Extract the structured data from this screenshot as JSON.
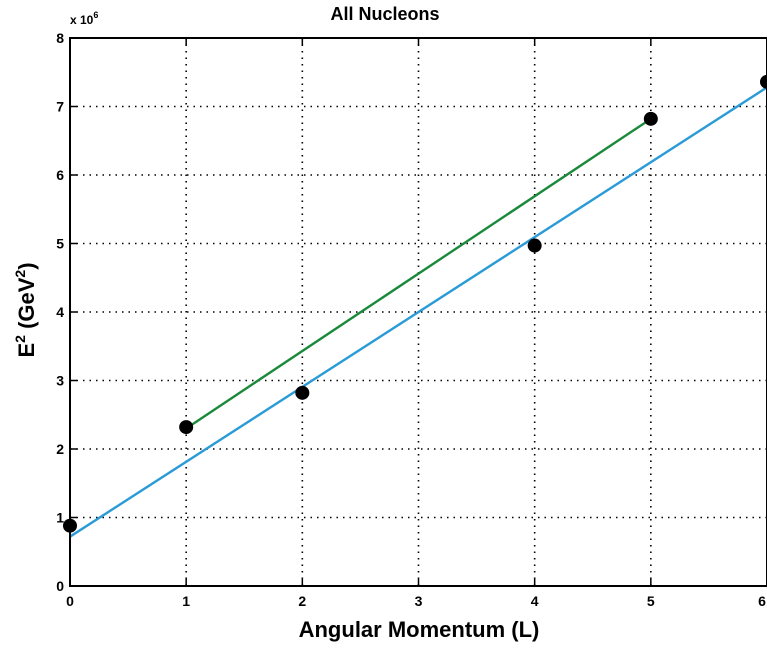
{
  "chart_data": {
    "type": "scatter",
    "title": "All Nucleons",
    "xlabel": "Angular Momentum (L)",
    "ylabel_base": "E",
    "ylabel_sup1": "2",
    "ylabel_unit": " (GeV",
    "ylabel_sup2": "2",
    "ylabel_end": ")",
    "y_multiplier_base": "x 10",
    "y_multiplier_exp": "6",
    "xlim": [
      0,
      6
    ],
    "ylim": [
      0,
      8
    ],
    "x_ticks": [
      "0",
      "1",
      "2",
      "3",
      "4",
      "5",
      "6"
    ],
    "y_ticks": [
      "0",
      "1",
      "2",
      "3",
      "4",
      "5",
      "6",
      "7",
      "8"
    ],
    "grid": true,
    "points": [
      {
        "x": 0,
        "y": 0.88
      },
      {
        "x": 1,
        "y": 2.32
      },
      {
        "x": 2,
        "y": 2.82
      },
      {
        "x": 4,
        "y": 4.97
      },
      {
        "x": 5,
        "y": 6.82
      },
      {
        "x": 6,
        "y": 7.36
      }
    ],
    "lines": [
      {
        "color": "#1a8a3a",
        "x": [
          1,
          5
        ],
        "y": [
          2.3,
          6.82
        ]
      },
      {
        "color": "#2a9bd6",
        "x": [
          0,
          6
        ],
        "y": [
          0.72,
          7.28
        ]
      }
    ]
  }
}
